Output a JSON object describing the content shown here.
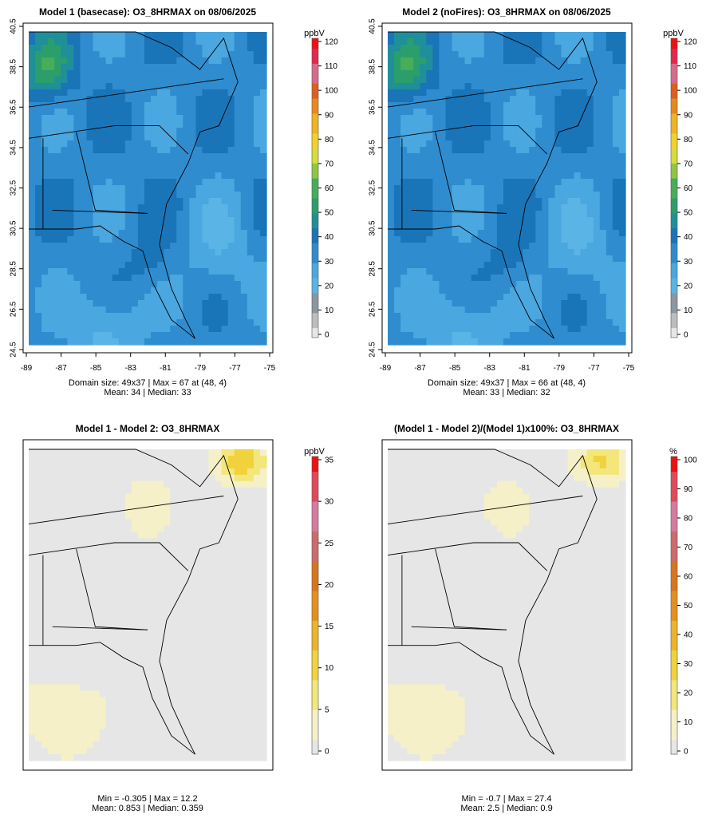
{
  "panels": [
    {
      "title": "Model 1 (basecase): O3_8HRMAX on 08/06/2025",
      "unit": "ppbV",
      "kind": "abs",
      "stats1": "Domain size: 49x37 | Max = 67 at (48, 4)",
      "stats2": "Mean: 34 |  Median: 33",
      "show_axes": true
    },
    {
      "title": "Model 2 (noFires): O3_8HRMAX on 08/06/2025",
      "unit": "ppbV",
      "kind": "abs",
      "stats1": "Domain size: 49x37 | Max = 66 at (48, 4)",
      "stats2": "Mean: 33 |  Median: 32",
      "show_axes": true
    },
    {
      "title": "Model 1 - Model 2: O3_8HRMAX",
      "unit": "ppbV",
      "kind": "diff",
      "stats1": "Min = -0.305 | Max = 12.2",
      "stats2": "Mean: 0.853 |  Median: 0.359",
      "show_axes": false
    },
    {
      "title": "(Model 1 - Model 2)/(Model 1)x100%: O3_8HRMAX",
      "unit": "%",
      "kind": "pct",
      "stats1": "Min = -0.7 | Max = 27.4",
      "stats2": "Mean: 2.5 |  Median: 0.9",
      "show_axes": false
    }
  ],
  "chart_data": [
    {
      "type": "heatmap",
      "title": "Model 1 (basecase): O3_8HRMAX on 08/06/2025",
      "grid": [
        49,
        37
      ],
      "xlim": [
        -89,
        -75
      ],
      "ylim": [
        24.5,
        40.5
      ],
      "x_ticks": [
        "-89",
        "-87",
        "-85",
        "-83",
        "-81",
        "-79",
        "-77",
        "-75"
      ],
      "y_ticks": [
        "24.5",
        "26.5",
        "28.5",
        "30.5",
        "32.5",
        "34.5",
        "36.5",
        "38.5",
        "40.5"
      ],
      "colorbar": {
        "label": "ppbV",
        "min": 0,
        "max": 120,
        "ticks": [
          0,
          10,
          20,
          30,
          40,
          50,
          60,
          70,
          80,
          90,
          100,
          110,
          120
        ]
      },
      "max": 67,
      "max_at": [
        48,
        4
      ],
      "mean": 34,
      "median": 33
    },
    {
      "type": "heatmap",
      "title": "Model 2 (noFires): O3_8HRMAX on 08/06/2025",
      "grid": [
        49,
        37
      ],
      "xlim": [
        -89,
        -75
      ],
      "ylim": [
        24.5,
        40.5
      ],
      "x_ticks": [
        "-89",
        "-87",
        "-85",
        "-83",
        "-81",
        "-79",
        "-77",
        "-75"
      ],
      "y_ticks": [
        "24.5",
        "26.5",
        "28.5",
        "30.5",
        "32.5",
        "34.5",
        "36.5",
        "38.5",
        "40.5"
      ],
      "colorbar": {
        "label": "ppbV",
        "min": 0,
        "max": 120,
        "ticks": [
          0,
          10,
          20,
          30,
          40,
          50,
          60,
          70,
          80,
          90,
          100,
          110,
          120
        ]
      },
      "max": 66,
      "max_at": [
        48,
        4
      ],
      "mean": 33,
      "median": 32
    },
    {
      "type": "heatmap",
      "title": "Model 1 - Model 2: O3_8HRMAX",
      "xlim": [
        -89,
        -75
      ],
      "ylim": [
        24.5,
        40.5
      ],
      "colorbar": {
        "label": "ppbV",
        "min": 0,
        "max": 35,
        "ticks": [
          0,
          5,
          10,
          15,
          20,
          25,
          30,
          35
        ]
      },
      "min": -0.305,
      "max": 12.2,
      "mean": 0.853,
      "median": 0.359
    },
    {
      "type": "heatmap",
      "title": "(Model 1 - Model 2)/(Model 1)x100%: O3_8HRMAX",
      "xlim": [
        -89,
        -75
      ],
      "ylim": [
        24.5,
        40.5
      ],
      "colorbar": {
        "label": "%",
        "min": 0,
        "max": 100,
        "ticks": [
          0,
          10,
          20,
          30,
          40,
          50,
          60,
          70,
          80,
          90,
          100
        ]
      },
      "min": -0.7,
      "max": 27.4,
      "mean": 2.5,
      "median": 0.9
    }
  ],
  "colors": {
    "abs_scale": [
      "#e6e6e6",
      "#bdbdbd",
      "#8c96a0",
      "#5ab4e6",
      "#4aa7df",
      "#2f8ccf",
      "#1a74b8",
      "#1f8f9a",
      "#2b9e6b",
      "#46ad58",
      "#8ec742",
      "#d8db3c",
      "#f2d12d",
      "#f0b323",
      "#e8891c",
      "#dd5f1c",
      "#d86a8c",
      "#e22a4a",
      "#ee1111"
    ],
    "diff_scale": [
      "#e6e6e6",
      "#f5f0c8",
      "#f3e67a",
      "#f1d23c",
      "#edb42a",
      "#e5901e",
      "#d9741c",
      "#cf6b6b",
      "#d87aa0",
      "#e04a5a",
      "#ee1111"
    ],
    "land_line": "#000000"
  }
}
